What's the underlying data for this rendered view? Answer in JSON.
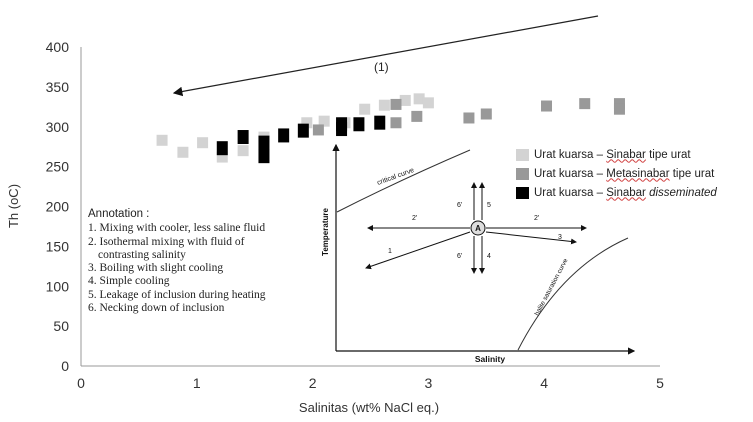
{
  "chart_data": {
    "type": "scatter",
    "marker": "square",
    "title": "",
    "xlabel": "Salinitas (wt% NaCl eq.)",
    "ylabel": "Th (oC)",
    "xlim": [
      0,
      5
    ],
    "ylim": [
      0,
      400
    ],
    "xticks": [
      0,
      1,
      2,
      3,
      4,
      5
    ],
    "yticks": [
      0,
      50,
      100,
      150,
      200,
      250,
      300,
      350,
      400
    ],
    "grid": false,
    "legend_position": "right",
    "series": [
      {
        "name": "Urat kuarsa – Sinabar tipe urat",
        "legend_parts": [
          {
            "text": "Urat kuarsa – ",
            "style": "normal"
          },
          {
            "text": "Sinabar",
            "style": "underline"
          },
          {
            "text": " tipe urat",
            "style": "normal"
          }
        ],
        "color": "#d3d3d3",
        "points": [
          [
            0.7,
            283
          ],
          [
            0.88,
            268
          ],
          [
            1.05,
            280
          ],
          [
            1.22,
            262
          ],
          [
            1.4,
            270
          ],
          [
            1.58,
            287
          ],
          [
            1.95,
            305
          ],
          [
            2.1,
            307
          ],
          [
            2.28,
            305
          ],
          [
            2.45,
            322
          ],
          [
            2.62,
            327
          ],
          [
            2.8,
            333
          ],
          [
            2.92,
            335
          ],
          [
            3.0,
            330
          ]
        ]
      },
      {
        "name": "Urat kuarsa – Metasinabar tipe urat",
        "legend_parts": [
          {
            "text": "Urat kuarsa – ",
            "style": "normal"
          },
          {
            "text": "Metasinabar",
            "style": "underline"
          },
          {
            "text": " tipe urat",
            "style": "normal"
          }
        ],
        "color": "#999999",
        "points": [
          [
            2.05,
            296
          ],
          [
            2.72,
            305
          ],
          [
            2.72,
            328
          ],
          [
            2.9,
            313
          ],
          [
            3.35,
            311
          ],
          [
            3.5,
            316
          ],
          [
            4.02,
            326
          ],
          [
            4.35,
            329
          ],
          [
            4.65,
            329
          ],
          [
            4.65,
            322
          ]
        ]
      },
      {
        "name": "Urat kuarsa – Sinabar disseminated",
        "legend_parts": [
          {
            "text": "Urat kuarsa – ",
            "style": "normal"
          },
          {
            "text": "Sinabar",
            "style": "underline"
          },
          {
            "text": " disseminated",
            "style": "italic"
          }
        ],
        "color": "#000000",
        "points": [
          [
            1.22,
            275
          ],
          [
            1.4,
            289
          ],
          [
            1.58,
            282
          ],
          [
            1.58,
            265
          ],
          [
            1.75,
            291
          ],
          [
            1.92,
            297
          ],
          [
            2.25,
            305
          ],
          [
            2.25,
            299
          ],
          [
            2.4,
            305
          ],
          [
            2.58,
            307
          ]
        ]
      }
    ],
    "trend_arrow_label": "(1)"
  },
  "annotation": {
    "heading": "Annotation :",
    "items": [
      "1. Mixing with cooler, less saline fluid",
      "2. Isothermal mixing with fluid of",
      "    contrasting salinity",
      "3. Boiling with slight cooling",
      "4. Simple cooling",
      "5. Leakage of inclusion during heating",
      "6. Necking down of inclusion"
    ]
  },
  "inset": {
    "x_axis_label": "Salinity",
    "y_axis_label": "Temperature",
    "critical_curve_label": "critical curve",
    "halite_curve_label": "halite saturation curve",
    "center_label": "A",
    "arrow_labels": {
      "one": "1",
      "two_left": "2'",
      "two_right": "2'",
      "three": "3",
      "four": "4",
      "five": "5",
      "six_top": "6'",
      "six_bottom": "6'"
    }
  }
}
